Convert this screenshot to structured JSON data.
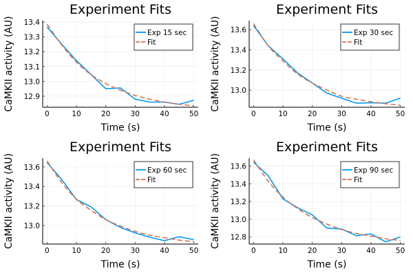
{
  "chart_data": [
    {
      "type": "line",
      "title": "Experiment Fits",
      "xlabel": "Time (s)",
      "ylabel": "CaMKII activity (AU)",
      "xlim": [
        -1.5,
        51.5
      ],
      "ylim": [
        12.825,
        13.41
      ],
      "xticks": [
        0,
        10,
        20,
        30,
        40,
        50
      ],
      "xtick_labels": [
        "0",
        "10",
        "20",
        "30",
        "40",
        "50"
      ],
      "yticks": [
        12.9,
        13.0,
        13.1,
        13.2,
        13.3,
        13.4
      ],
      "ytick_labels": [
        "12.9",
        "13.0",
        "13.1",
        "13.2",
        "13.3",
        "13.4"
      ],
      "grid": true,
      "legend": "top-right",
      "x": [
        0,
        5,
        10,
        15,
        20,
        25,
        30,
        35,
        40,
        45,
        50
      ],
      "series": [
        {
          "name": "Exp 15 sec",
          "style": "solid",
          "color": "#009AFA",
          "values": [
            13.367,
            13.25,
            13.14,
            13.045,
            12.95,
            12.955,
            12.88,
            12.86,
            12.86,
            12.845,
            12.872
          ]
        },
        {
          "name": "Fit",
          "style": "dashed",
          "color": "#E26F46",
          "values": [
            13.385,
            13.245,
            13.13,
            13.045,
            12.985,
            12.94,
            12.905,
            12.88,
            12.86,
            12.845,
            12.835
          ]
        }
      ]
    },
    {
      "type": "line",
      "title": "Experiment Fits",
      "xlabel": "Time (s)",
      "ylabel": "CaMKII activity (AU)",
      "xlim": [
        -1.5,
        51.5
      ],
      "ylim": [
        12.83,
        13.69
      ],
      "xticks": [
        0,
        10,
        20,
        30,
        40,
        50
      ],
      "xtick_labels": [
        "0",
        "10",
        "20",
        "30",
        "40",
        "50"
      ],
      "yticks": [
        13.0,
        13.2,
        13.4,
        13.6
      ],
      "ytick_labels": [
        "13.0",
        "13.2",
        "13.4",
        "13.6"
      ],
      "grid": true,
      "legend": "top-right",
      "x": [
        0,
        5,
        10,
        15,
        20,
        25,
        30,
        35,
        40,
        45,
        50
      ],
      "series": [
        {
          "name": "Exp 30 sec",
          "style": "solid",
          "color": "#009AFA",
          "values": [
            13.64,
            13.44,
            13.31,
            13.17,
            13.07,
            12.97,
            12.92,
            12.87,
            12.875,
            12.87,
            12.92
          ]
        },
        {
          "name": "Fit",
          "style": "dashed",
          "color": "#E26F46",
          "values": [
            13.66,
            13.44,
            13.29,
            13.16,
            13.07,
            13.0,
            12.94,
            12.91,
            12.885,
            12.865,
            12.85
          ]
        }
      ]
    },
    {
      "type": "line",
      "title": "Experiment Fits",
      "xlabel": "Time (s)",
      "ylabel": "CaMKII activity (AU)",
      "xlim": [
        -1.5,
        51.5
      ],
      "ylim": [
        12.81,
        13.69
      ],
      "xticks": [
        0,
        10,
        20,
        30,
        40,
        50
      ],
      "xtick_labels": [
        "0",
        "10",
        "20",
        "30",
        "40",
        "50"
      ],
      "yticks": [
        13.0,
        13.2,
        13.4,
        13.6
      ],
      "ytick_labels": [
        "13.0",
        "13.2",
        "13.4",
        "13.6"
      ],
      "grid": true,
      "legend": "top-right",
      "x": [
        0,
        5,
        10,
        15,
        20,
        25,
        30,
        35,
        40,
        45,
        50
      ],
      "series": [
        {
          "name": "Exp 60 sec",
          "style": "solid",
          "color": "#009AFA",
          "values": [
            13.645,
            13.47,
            13.265,
            13.19,
            13.06,
            12.98,
            12.925,
            12.88,
            12.845,
            12.885,
            12.855
          ]
        },
        {
          "name": "Fit",
          "style": "dashed",
          "color": "#E26F46",
          "values": [
            13.66,
            13.44,
            13.27,
            13.155,
            13.06,
            12.995,
            12.94,
            12.9,
            12.875,
            12.85,
            12.835
          ]
        }
      ]
    },
    {
      "type": "line",
      "title": "Experiment Fits",
      "xlabel": "Time (s)",
      "ylabel": "CaMKII activity (AU)",
      "xlim": [
        -1.5,
        51.5
      ],
      "ylim": [
        12.72,
        13.69
      ],
      "xticks": [
        0,
        10,
        20,
        30,
        40,
        50
      ],
      "xtick_labels": [
        "0",
        "10",
        "20",
        "30",
        "40",
        "50"
      ],
      "yticks": [
        12.8,
        13.0,
        13.2,
        13.4,
        13.6
      ],
      "ytick_labels": [
        "12.8",
        "13.0",
        "13.2",
        "13.4",
        "13.6"
      ],
      "grid": true,
      "legend": "top-right",
      "x": [
        0,
        5,
        10,
        15,
        20,
        25,
        30,
        35,
        40,
        45,
        50
      ],
      "series": [
        {
          "name": "Exp 90 sec",
          "style": "solid",
          "color": "#009AFA",
          "values": [
            13.645,
            13.49,
            13.23,
            13.13,
            13.05,
            12.9,
            12.89,
            12.815,
            12.835,
            12.745,
            12.8
          ]
        },
        {
          "name": "Fit",
          "style": "dashed",
          "color": "#E26F46",
          "values": [
            13.67,
            13.43,
            13.25,
            13.12,
            13.02,
            12.945,
            12.885,
            12.84,
            12.81,
            12.78,
            12.76
          ]
        }
      ]
    }
  ]
}
